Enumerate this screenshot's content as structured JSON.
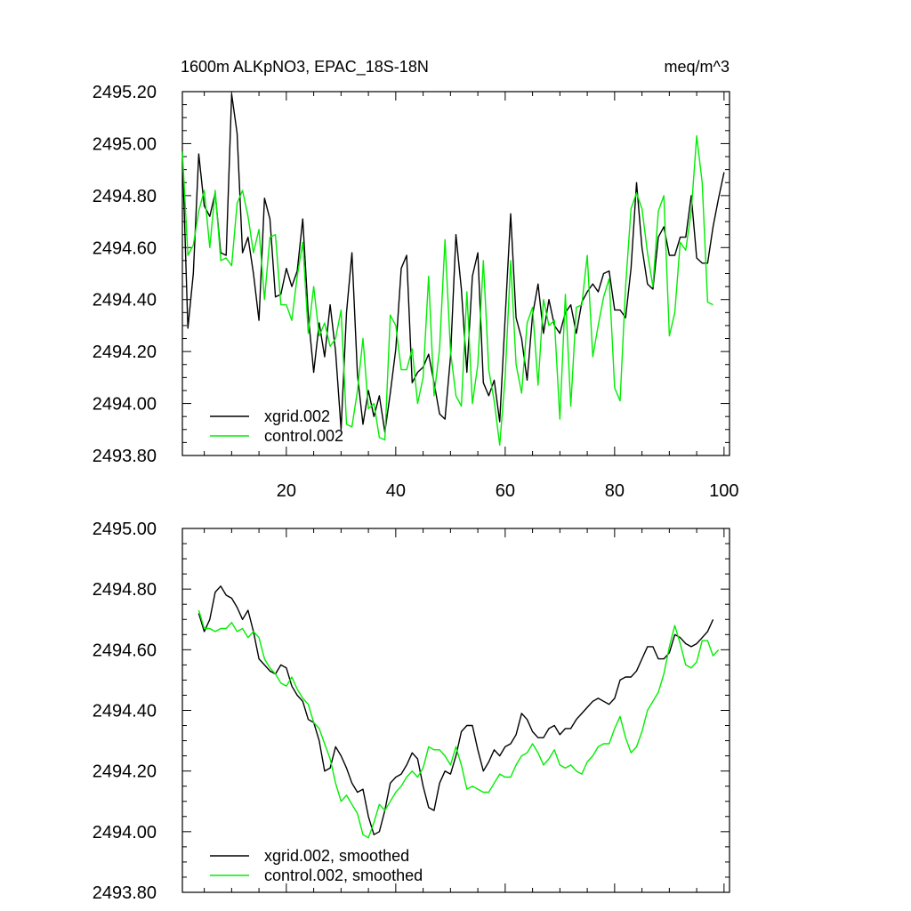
{
  "chart_data": [
    {
      "type": "line",
      "title_left": "1600m ALKpNO3, EPAC_18S-18N",
      "title_right": "meq/m^3",
      "xlabel": "",
      "ylabel": "",
      "xlim": [
        1,
        101
      ],
      "ylim": [
        2493.8,
        2495.2
      ],
      "xticks": [
        20,
        40,
        60,
        80,
        100
      ],
      "yticks": [
        2493.8,
        2494.0,
        2494.2,
        2494.4,
        2494.6,
        2494.8,
        2495.0,
        2495.2
      ],
      "ytick_labels": [
        "2493.80",
        "2494.00",
        "2494.20",
        "2494.40",
        "2494.60",
        "2494.80",
        "2495.00",
        "2495.20"
      ],
      "xtick_labels": [
        "20",
        "40",
        "60",
        "80",
        "100"
      ],
      "legend": "bottom-left",
      "series": [
        {
          "name": "xgrid.002",
          "color": "#000000",
          "x_start": 1,
          "values": [
            2494.97,
            2494.29,
            2494.5,
            2494.96,
            2494.76,
            2494.72,
            2494.81,
            2494.58,
            2494.57,
            2495.19,
            2495.04,
            2494.58,
            2494.64,
            2494.5,
            2494.32,
            2494.79,
            2494.71,
            2494.41,
            2494.42,
            2494.52,
            2494.45,
            2494.51,
            2494.71,
            2494.34,
            2494.12,
            2494.31,
            2494.18,
            2494.38,
            2494.2,
            2493.9,
            2494.35,
            2494.58,
            2494.11,
            2493.92,
            2494.05,
            2493.95,
            2494.03,
            2493.89,
            2494.04,
            2494.21,
            2494.52,
            2494.57,
            2494.08,
            2494.12,
            2494.14,
            2494.19,
            2494.08,
            2493.96,
            2493.94,
            2494.18,
            2494.65,
            2494.44,
            2494.12,
            2494.49,
            2494.58,
            2494.08,
            2494.03,
            2494.09,
            2493.93,
            2494.33,
            2494.73,
            2494.33,
            2494.25,
            2494.09,
            2494.34,
            2494.46,
            2494.27,
            2494.4,
            2494.3,
            2494.27,
            2494.35,
            2494.38,
            2494.27,
            2494.39,
            2494.43,
            2494.46,
            2494.43,
            2494.5,
            2494.51,
            2494.36,
            2494.36,
            2494.33,
            2494.52,
            2494.85,
            2494.6,
            2494.46,
            2494.44,
            2494.64,
            2494.68,
            2494.57,
            2494.57,
            2494.64,
            2494.64,
            2494.8,
            2494.56,
            2494.54,
            2494.54,
            2494.68,
            2494.79,
            2494.89
          ]
        },
        {
          "name": "control.002",
          "color": "#00ee00",
          "x_start": 1,
          "values": [
            2494.97,
            2494.57,
            2494.61,
            2494.74,
            2494.82,
            2494.6,
            2494.82,
            2494.55,
            2494.56,
            2494.53,
            2494.77,
            2494.82,
            2494.72,
            2494.58,
            2494.67,
            2494.4,
            2494.64,
            2494.65,
            2494.38,
            2494.38,
            2494.32,
            2494.49,
            2494.62,
            2494.27,
            2494.45,
            2494.26,
            2494.31,
            2494.22,
            2494.25,
            2494.36,
            2493.92,
            2493.91,
            2494.05,
            2494.25,
            2493.98,
            2494.0,
            2493.87,
            2493.86,
            2494.34,
            2494.3,
            2494.13,
            2494.13,
            2494.21,
            2494.0,
            2494.1,
            2494.49,
            2494.03,
            2494.21,
            2494.63,
            2494.2,
            2494.03,
            2493.99,
            2494.43,
            2494.0,
            2494.15,
            2494.55,
            2494.13,
            2494.01,
            2493.84,
            2494.1,
            2494.55,
            2494.15,
            2494.04,
            2494.31,
            2494.37,
            2494.07,
            2494.4,
            2494.3,
            2494.32,
            2493.94,
            2494.42,
            2493.99,
            2494.37,
            2494.38,
            2494.57,
            2494.18,
            2494.3,
            2494.41,
            2494.48,
            2494.06,
            2494.01,
            2494.45,
            2494.75,
            2494.81,
            2494.75,
            2494.58,
            2494.45,
            2494.74,
            2494.8,
            2494.26,
            2494.35,
            2494.62,
            2494.59,
            2494.74,
            2495.03,
            2494.85,
            2494.39,
            2494.38
          ]
        }
      ]
    },
    {
      "type": "line",
      "title_left": "",
      "title_right": "",
      "xlabel": "",
      "ylabel": "",
      "xlim": [
        1,
        101
      ],
      "ylim": [
        2493.8,
        2495.0
      ],
      "xticks": [
        20,
        40,
        60,
        80,
        100
      ],
      "yticks": [
        2493.8,
        2494.0,
        2494.2,
        2494.4,
        2494.6,
        2494.8,
        2495.0
      ],
      "ytick_labels": [
        "2493.80",
        "2494.00",
        "2494.20",
        "2494.40",
        "2494.60",
        "2494.80",
        "2495.00"
      ],
      "xtick_labels": [],
      "legend": "bottom-left",
      "series": [
        {
          "name": "xgrid.002, smoothed",
          "color": "#000000",
          "x_start": 4,
          "values": [
            2494.72,
            2494.66,
            2494.7,
            2494.79,
            2494.81,
            2494.78,
            2494.77,
            2494.74,
            2494.7,
            2494.73,
            2494.66,
            2494.57,
            2494.55,
            2494.53,
            2494.52,
            2494.55,
            2494.54,
            2494.48,
            2494.45,
            2494.43,
            2494.37,
            2494.36,
            2494.3,
            2494.2,
            2494.21,
            2494.28,
            2494.25,
            2494.21,
            2494.16,
            2494.13,
            2494.14,
            2494.05,
            2493.99,
            2494.0,
            2494.07,
            2494.16,
            2494.18,
            2494.19,
            2494.22,
            2494.26,
            2494.24,
            2494.15,
            2494.08,
            2494.07,
            2494.16,
            2494.2,
            2494.19,
            2494.25,
            2494.33,
            2494.35,
            2494.35,
            2494.27,
            2494.2,
            2494.23,
            2494.27,
            2494.25,
            2494.28,
            2494.29,
            2494.32,
            2494.39,
            2494.37,
            2494.33,
            2494.31,
            2494.31,
            2494.34,
            2494.35,
            2494.32,
            2494.34,
            2494.34,
            2494.37,
            2494.39,
            2494.41,
            2494.43,
            2494.44,
            2494.43,
            2494.42,
            2494.44,
            2494.5,
            2494.51,
            2494.51,
            2494.53,
            2494.57,
            2494.61,
            2494.61,
            2494.57,
            2494.57,
            2494.59,
            2494.65,
            2494.64,
            2494.62,
            2494.61,
            2494.62,
            2494.64,
            2494.66,
            2494.7
          ]
        },
        {
          "name": "control.002, smoothed",
          "color": "#00ee00",
          "x_start": 4,
          "values": [
            2494.73,
            2494.67,
            2494.67,
            2494.66,
            2494.67,
            2494.67,
            2494.69,
            2494.66,
            2494.67,
            2494.64,
            2494.66,
            2494.64,
            2494.57,
            2494.54,
            2494.52,
            2494.49,
            2494.48,
            2494.51,
            2494.47,
            2494.44,
            2494.42,
            2494.36,
            2494.34,
            2494.29,
            2494.24,
            2494.16,
            2494.1,
            2494.12,
            2494.09,
            2494.06,
            2493.99,
            2493.98,
            2494.03,
            2494.09,
            2494.07,
            2494.1,
            2494.13,
            2494.15,
            2494.18,
            2494.2,
            2494.18,
            2494.21,
            2494.28,
            2494.27,
            2494.27,
            2494.25,
            2494.22,
            2494.28,
            2494.22,
            2494.14,
            2494.15,
            2494.14,
            2494.13,
            2494.13,
            2494.16,
            2494.19,
            2494.18,
            2494.18,
            2494.22,
            2494.25,
            2494.26,
            2494.29,
            2494.26,
            2494.22,
            2494.24,
            2494.27,
            2494.22,
            2494.21,
            2494.22,
            2494.2,
            2494.19,
            2494.23,
            2494.25,
            2494.28,
            2494.29,
            2494.29,
            2494.34,
            2494.38,
            2494.31,
            2494.26,
            2494.28,
            2494.33,
            2494.4,
            2494.43,
            2494.46,
            2494.52,
            2494.61,
            2494.68,
            2494.62,
            2494.55,
            2494.54,
            2494.56,
            2494.63,
            2494.63,
            2494.58,
            2494.6
          ]
        }
      ]
    }
  ]
}
